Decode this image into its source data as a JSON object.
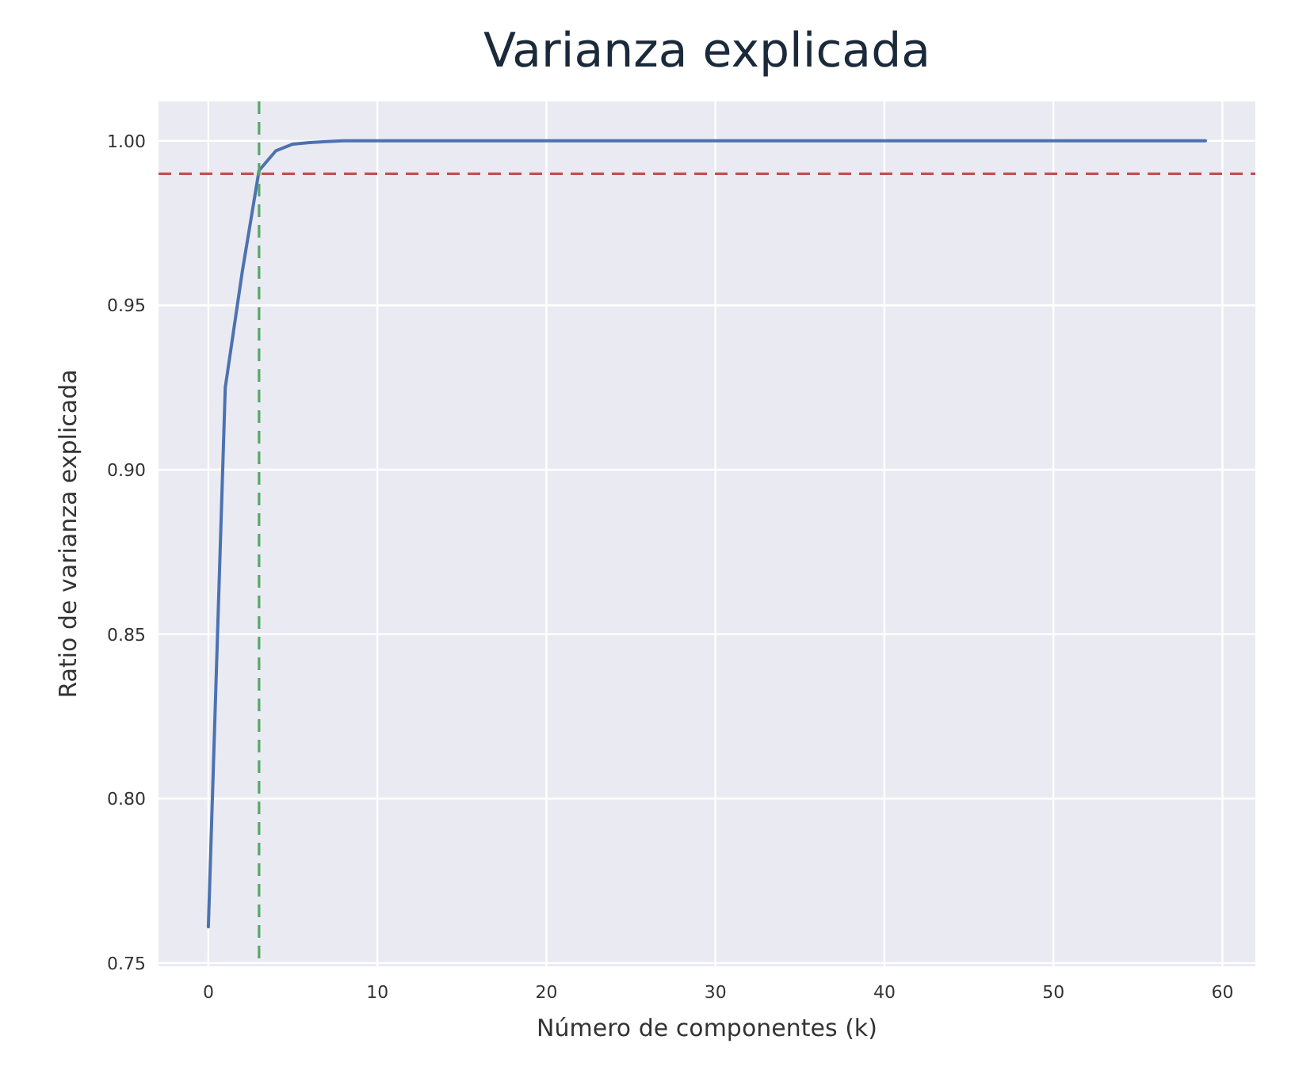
{
  "chart_data": {
    "type": "line",
    "title": "Varianza explicada",
    "xlabel": "Número de componentes (k)",
    "ylabel": "Ratio de varianza explicada",
    "x": [
      0,
      1,
      2,
      3,
      4,
      5,
      6,
      7,
      8,
      9,
      10,
      11,
      12,
      13,
      14,
      15,
      16,
      17,
      18,
      19,
      20,
      21,
      22,
      23,
      24,
      25,
      26,
      27,
      28,
      29,
      30,
      31,
      32,
      33,
      34,
      35,
      36,
      37,
      38,
      39,
      40,
      41,
      42,
      43,
      44,
      45,
      46,
      47,
      48,
      49,
      50,
      51,
      52,
      53,
      54,
      55,
      56,
      57,
      58,
      59
    ],
    "series": [
      {
        "color": "#4c72b0",
        "values": [
          0.761,
          0.925,
          0.96,
          0.991,
          0.997,
          0.999,
          0.9995,
          0.9998,
          1,
          1,
          1,
          1,
          1,
          1,
          1,
          1,
          1,
          1,
          1,
          1,
          1,
          1,
          1,
          1,
          1,
          1,
          1,
          1,
          1,
          1,
          1,
          1,
          1,
          1,
          1,
          1,
          1,
          1,
          1,
          1,
          1,
          1,
          1,
          1,
          1,
          1,
          1,
          1,
          1,
          1,
          1,
          1,
          1,
          1,
          1,
          1,
          1,
          1,
          1,
          1
        ]
      }
    ],
    "xlim": [
      -2.95,
      61.95
    ],
    "ylim": [
      0.749,
      1.012
    ],
    "xticks": [
      0,
      10,
      20,
      30,
      40,
      50,
      60
    ],
    "yticks": [
      {
        "value": 0.75,
        "label": "0.75"
      },
      {
        "value": 0.8,
        "label": "0.80"
      },
      {
        "value": 0.85,
        "label": "0.85"
      },
      {
        "value": 0.9,
        "label": "0.90"
      },
      {
        "value": 0.95,
        "label": "0.95"
      },
      {
        "value": 1,
        "label": "1.00"
      }
    ],
    "ref_lines": [
      {
        "axis": "y",
        "value": 0.99,
        "color": "#c44e52",
        "line_style": "dashed"
      },
      {
        "axis": "x",
        "value": 3,
        "color": "#55a868",
        "line_style": "dashed"
      }
    ],
    "grid": true,
    "line_style": "solid",
    "marker": "none"
  }
}
